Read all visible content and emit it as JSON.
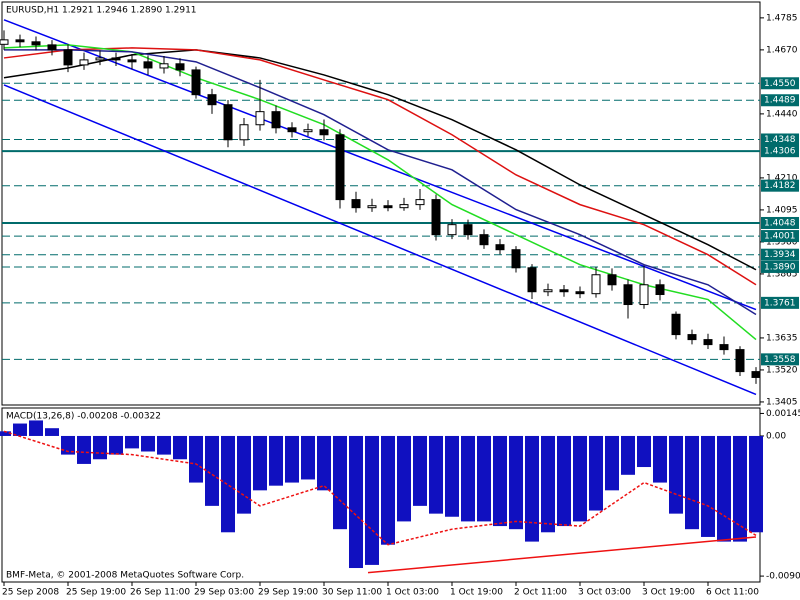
{
  "chart_data": [
    {
      "type": "candlestick",
      "title": "EURUSD,H1  1.2921 1.2946 1.2890 1.2911",
      "xlim": [
        0,
        188
      ],
      "x": [
        0,
        4,
        8,
        12,
        16,
        20,
        24,
        28,
        32,
        36,
        40,
        44,
        48,
        52,
        56,
        60,
        64,
        68,
        72,
        76,
        80,
        84,
        88,
        92,
        96,
        100,
        104,
        108,
        112,
        116,
        120,
        124,
        128,
        132,
        136,
        140,
        144,
        148,
        152,
        156,
        160,
        164,
        168,
        172,
        176,
        180,
        184,
        188
      ],
      "open": [
        1.469,
        1.4706,
        1.4699,
        1.4688,
        1.467,
        1.4616,
        1.4634,
        1.4641,
        1.4634,
        1.4627,
        1.4605,
        1.462,
        1.4598,
        1.4509,
        1.4473,
        1.4347,
        1.4401,
        1.4448,
        1.439,
        1.4376,
        1.4383,
        1.4365,
        1.4132,
        1.4103,
        1.411,
        1.4103,
        1.4114,
        1.4132,
        1.4006,
        1.4042,
        1.4006,
        1.397,
        1.3952,
        1.3887,
        1.3801,
        1.3808,
        1.3801,
        1.3794,
        1.3862,
        1.3826,
        1.3755,
        1.3826,
        1.372,
        1.3647,
        1.3629,
        1.3611,
        1.3593,
        1.3514
      ],
      "high": [
        1.474,
        1.4725,
        1.4718,
        1.4705,
        1.469,
        1.466,
        1.4668,
        1.466,
        1.4655,
        1.465,
        1.4648,
        1.464,
        1.461,
        1.453,
        1.449,
        1.4425,
        1.4562,
        1.447,
        1.441,
        1.4405,
        1.442,
        1.4385,
        1.416,
        1.4135,
        1.413,
        1.4138,
        1.417,
        1.415,
        1.4062,
        1.406,
        1.4025,
        1.399,
        1.3965,
        1.39,
        1.383,
        1.3825,
        1.382,
        1.389,
        1.3885,
        1.3845,
        1.3895,
        1.3845,
        1.373,
        1.3665,
        1.365,
        1.364,
        1.3605,
        1.353
      ],
      "low": [
        1.467,
        1.468,
        1.4668,
        1.465,
        1.459,
        1.4598,
        1.4615,
        1.4612,
        1.46,
        1.458,
        1.4585,
        1.4575,
        1.4495,
        1.444,
        1.432,
        1.4325,
        1.438,
        1.437,
        1.4355,
        1.436,
        1.4345,
        1.41,
        1.4085,
        1.4088,
        1.409,
        1.4092,
        1.4095,
        1.3985,
        1.399,
        1.3988,
        1.3955,
        1.3935,
        1.387,
        1.3775,
        1.3785,
        1.3783,
        1.3778,
        1.378,
        1.3805,
        1.3705,
        1.374,
        1.377,
        1.363,
        1.3612,
        1.3595,
        1.3575,
        1.3498,
        1.347
      ],
      "close": [
        1.4706,
        1.4699,
        1.4688,
        1.467,
        1.4616,
        1.4634,
        1.4641,
        1.4634,
        1.4627,
        1.4605,
        1.462,
        1.4598,
        1.4509,
        1.4473,
        1.4347,
        1.4401,
        1.4448,
        1.439,
        1.4376,
        1.4383,
        1.4365,
        1.4132,
        1.4103,
        1.411,
        1.4103,
        1.4114,
        1.4132,
        1.4006,
        1.4042,
        1.4006,
        1.397,
        1.3952,
        1.3887,
        1.3801,
        1.3808,
        1.3801,
        1.3794,
        1.3862,
        1.3826,
        1.3755,
        1.3826,
        1.3791,
        1.3647,
        1.3629,
        1.3611,
        1.3593,
        1.3514,
        1.3493
      ],
      "moving_averages": {
        "x": [
          0,
          16,
          32,
          48,
          64,
          80,
          96,
          112,
          128,
          144,
          160,
          176,
          188
        ],
        "series": [
          {
            "color": "#000000",
            "values": [
              1.457,
              1.4605,
              1.4652,
              1.467,
              1.4641,
              1.458,
              1.4509,
              1.4419,
              1.4311,
              1.4185,
              1.4078,
              1.397,
              1.388
            ]
          },
          {
            "color": "#dd1111",
            "values": [
              1.4641,
              1.467,
              1.4677,
              1.467,
              1.4634,
              1.4562,
              1.4491,
              1.4365,
              1.4221,
              1.4114,
              1.4042,
              1.3934,
              1.3826
            ]
          },
          {
            "color": "#22dd22",
            "values": [
              1.4677,
              1.4688,
              1.4663,
              1.457,
              1.4491,
              1.4401,
              1.4275,
              1.4114,
              1.4006,
              1.3898,
              1.3826,
              1.3773,
              1.3629
            ]
          },
          {
            "color": "#202090",
            "values": [
              1.467,
              1.467,
              1.4663,
              1.4627,
              1.4534,
              1.4437,
              1.4311,
              1.4239,
              1.4096,
              1.4006,
              1.3898,
              1.3826,
              1.3719
            ]
          }
        ]
      },
      "trendlines": [
        {
          "color": "#0000ee",
          "x": [
            0,
            188
          ],
          "values": [
            1.4778,
            1.3737
          ]
        },
        {
          "color": "#0000ee",
          "x": [
            0,
            188
          ],
          "values": [
            1.4544,
            1.3432
          ]
        }
      ],
      "levels": [
        {
          "value": 1.455,
          "label": "1.4550",
          "style": "dashed"
        },
        {
          "value": 1.4489,
          "label": "1.4489",
          "style": "dashed"
        },
        {
          "value": 1.4348,
          "label": "1.4348",
          "style": "dashed"
        },
        {
          "value": 1.4306,
          "label": "1.4306",
          "style": "solid"
        },
        {
          "value": 1.4182,
          "label": "1.4182",
          "style": "dashed"
        },
        {
          "value": 1.4048,
          "label": "1.4048",
          "style": "solid"
        },
        {
          "value": 1.4001,
          "label": "1.4001",
          "style": "dashed"
        },
        {
          "value": 1.3934,
          "label": "1.3934",
          "style": "dashed"
        },
        {
          "value": 1.389,
          "label": "1.3890",
          "style": "dashed"
        },
        {
          "value": 1.3761,
          "label": "1.3761",
          "style": "dashed"
        },
        {
          "value": 1.3558,
          "label": "1.3558",
          "style": "dashed"
        }
      ],
      "level_color": "#006b6b",
      "ylim": [
        1.3394,
        1.4842
      ],
      "yticks": [
        1.4785,
        {
          "value": 1.467,
          "label": "1.4670"
        },
        {
          "value": 1.444,
          "label": "1.4440"
        },
        {
          "value": 1.421,
          "label": "1.4210"
        },
        1.4095,
        {
          "value": 1.398,
          "label": "1.3980"
        },
        1.3865,
        1.3635,
        {
          "value": 1.352,
          "label": "1.3520"
        },
        1.3405
      ]
    },
    {
      "type": "macd",
      "title": "MACD(13,26,8) -0.00208 -0.00322",
      "annotation": "BMF-Meta, © 2001-2008 MetaQuotes Software Corp.",
      "xlim": [
        0,
        188
      ],
      "x": [
        0,
        4,
        8,
        12,
        16,
        20,
        24,
        28,
        32,
        36,
        40,
        44,
        48,
        52,
        56,
        60,
        64,
        68,
        72,
        76,
        80,
        84,
        88,
        92,
        96,
        100,
        104,
        108,
        112,
        116,
        120,
        124,
        128,
        132,
        136,
        140,
        144,
        148,
        152,
        156,
        160,
        164,
        168,
        172,
        176,
        180,
        184,
        188
      ],
      "values": [
        0.0003,
        0.0008,
        0.001,
        0.0005,
        -0.0012,
        -0.0018,
        -0.0015,
        -0.0012,
        -0.0008,
        -0.001,
        -0.0012,
        -0.0015,
        -0.003,
        -0.0045,
        -0.0062,
        -0.005,
        -0.0035,
        -0.0032,
        -0.003,
        -0.0028,
        -0.0035,
        -0.006,
        -0.0085,
        -0.0083,
        -0.007,
        -0.0055,
        -0.0045,
        -0.005,
        -0.0052,
        -0.0055,
        -0.0055,
        -0.0058,
        -0.006,
        -0.0068,
        -0.0062,
        -0.0058,
        -0.0055,
        -0.0048,
        -0.0035,
        -0.0025,
        -0.002,
        -0.003,
        -0.005,
        -0.006,
        -0.0065,
        -0.0068,
        -0.0068,
        -0.0062
      ],
      "color": "#1010c0",
      "signal": {
        "color": "#ee1111",
        "x": [
          0,
          16,
          32,
          48,
          64,
          80,
          96,
          112,
          128,
          144,
          160,
          176,
          188
        ],
        "values": [
          0.0003,
          -0.001,
          -0.0012,
          -0.0018,
          -0.0045,
          -0.0032,
          -0.007,
          -0.006,
          -0.0055,
          -0.0058,
          -0.003,
          -0.0045,
          -0.0064
        ]
      },
      "trendline": {
        "color": "#ee1111",
        "x": [
          91,
          188
        ],
        "values": [
          -0.0088,
          -0.0065
        ]
      },
      "ylim": [
        -0.0094,
        0.0018
      ],
      "yticks": [
        0.00145,
        {
          "value": 0,
          "label": "0.00"
        },
        -0.00902
      ],
      "xticks": [
        {
          "value": 0,
          "label": "25 Sep 2008"
        },
        {
          "value": 16,
          "label": "25 Sep 19:00"
        },
        {
          "value": 32,
          "label": "26 Sep 11:00"
        },
        {
          "value": 48,
          "label": "29 Sep 03:00"
        },
        {
          "value": 64,
          "label": "29 Sep 19:00"
        },
        {
          "value": 80,
          "label": "30 Sep 11:00"
        },
        {
          "value": 96,
          "label": "1 Oct 03:00"
        },
        {
          "value": 112,
          "label": "1 Oct 19:00"
        },
        {
          "value": 128,
          "label": "2 Oct 11:00"
        },
        {
          "value": 144,
          "label": "3 Oct 03:00"
        },
        {
          "value": 160,
          "label": "3 Oct 19:00"
        },
        {
          "value": 176,
          "label": "6 Oct 11:00"
        }
      ]
    }
  ]
}
